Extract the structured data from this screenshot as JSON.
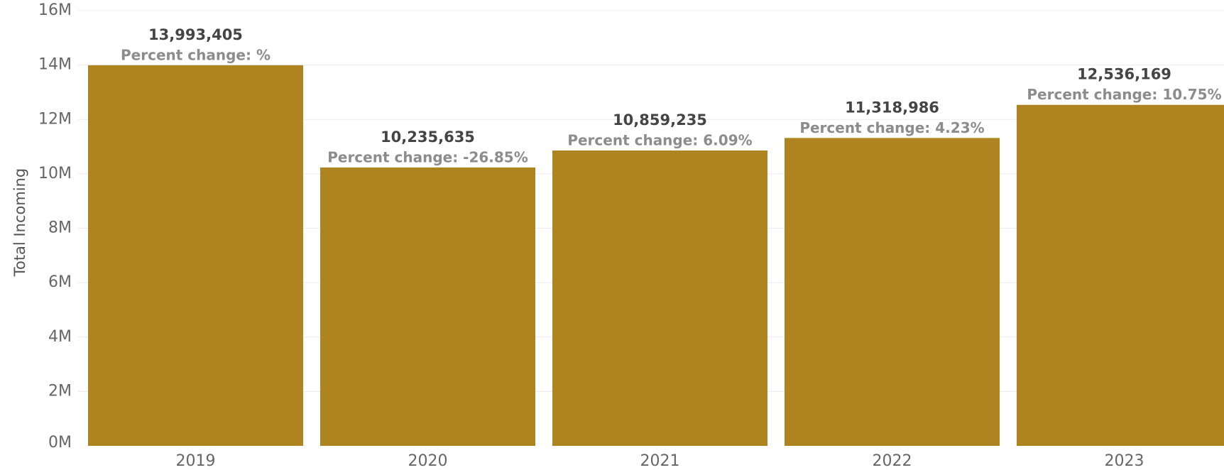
{
  "chart_data": {
    "type": "bar",
    "title": "",
    "xlabel": "",
    "ylabel": "Total Incoming",
    "categories": [
      "2019",
      "2020",
      "2021",
      "2022",
      "2023"
    ],
    "values": [
      13993405,
      10235635,
      10859235,
      11318986,
      12536169
    ],
    "value_labels": [
      "13,993,405",
      "10,235,635",
      "10,859,235",
      "11,318,986",
      "12,536,169"
    ],
    "percent_labels": [
      "Percent change: %",
      "Percent change: -26.85%",
      "Percent change: 6.09%",
      "Percent change: 4.23%",
      "Percent change: 10.75%"
    ],
    "ylim": [
      0,
      16000000
    ],
    "yticks": [
      {
        "value": 0,
        "label": "0M"
      },
      {
        "value": 2000000,
        "label": "2M"
      },
      {
        "value": 4000000,
        "label": "4M"
      },
      {
        "value": 6000000,
        "label": "6M"
      },
      {
        "value": 8000000,
        "label": "8M"
      },
      {
        "value": 10000000,
        "label": "10M"
      },
      {
        "value": 12000000,
        "label": "12M"
      },
      {
        "value": 14000000,
        "label": "14M"
      },
      {
        "value": 16000000,
        "label": "16M"
      }
    ],
    "grid": true,
    "legend": "none",
    "bar_color": "#AD8420"
  }
}
